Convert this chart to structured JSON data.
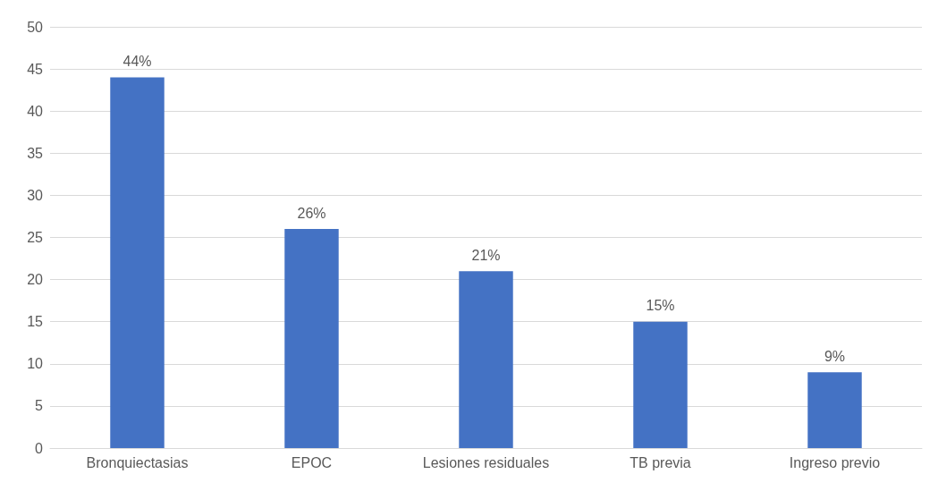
{
  "chart_data": {
    "type": "bar",
    "categories": [
      "Bronquiectasias",
      "EPOC",
      "Lesiones residuales",
      "TB previa",
      "Ingreso previo"
    ],
    "values": [
      44,
      26,
      21,
      15,
      9
    ],
    "value_labels": [
      "44%",
      "26%",
      "21%",
      "15%",
      "9%"
    ],
    "color": "#4472c4",
    "ylim": [
      0,
      50
    ],
    "yticks": [
      0,
      5,
      10,
      15,
      20,
      25,
      30,
      35,
      40,
      45,
      50
    ],
    "grid": "y"
  }
}
